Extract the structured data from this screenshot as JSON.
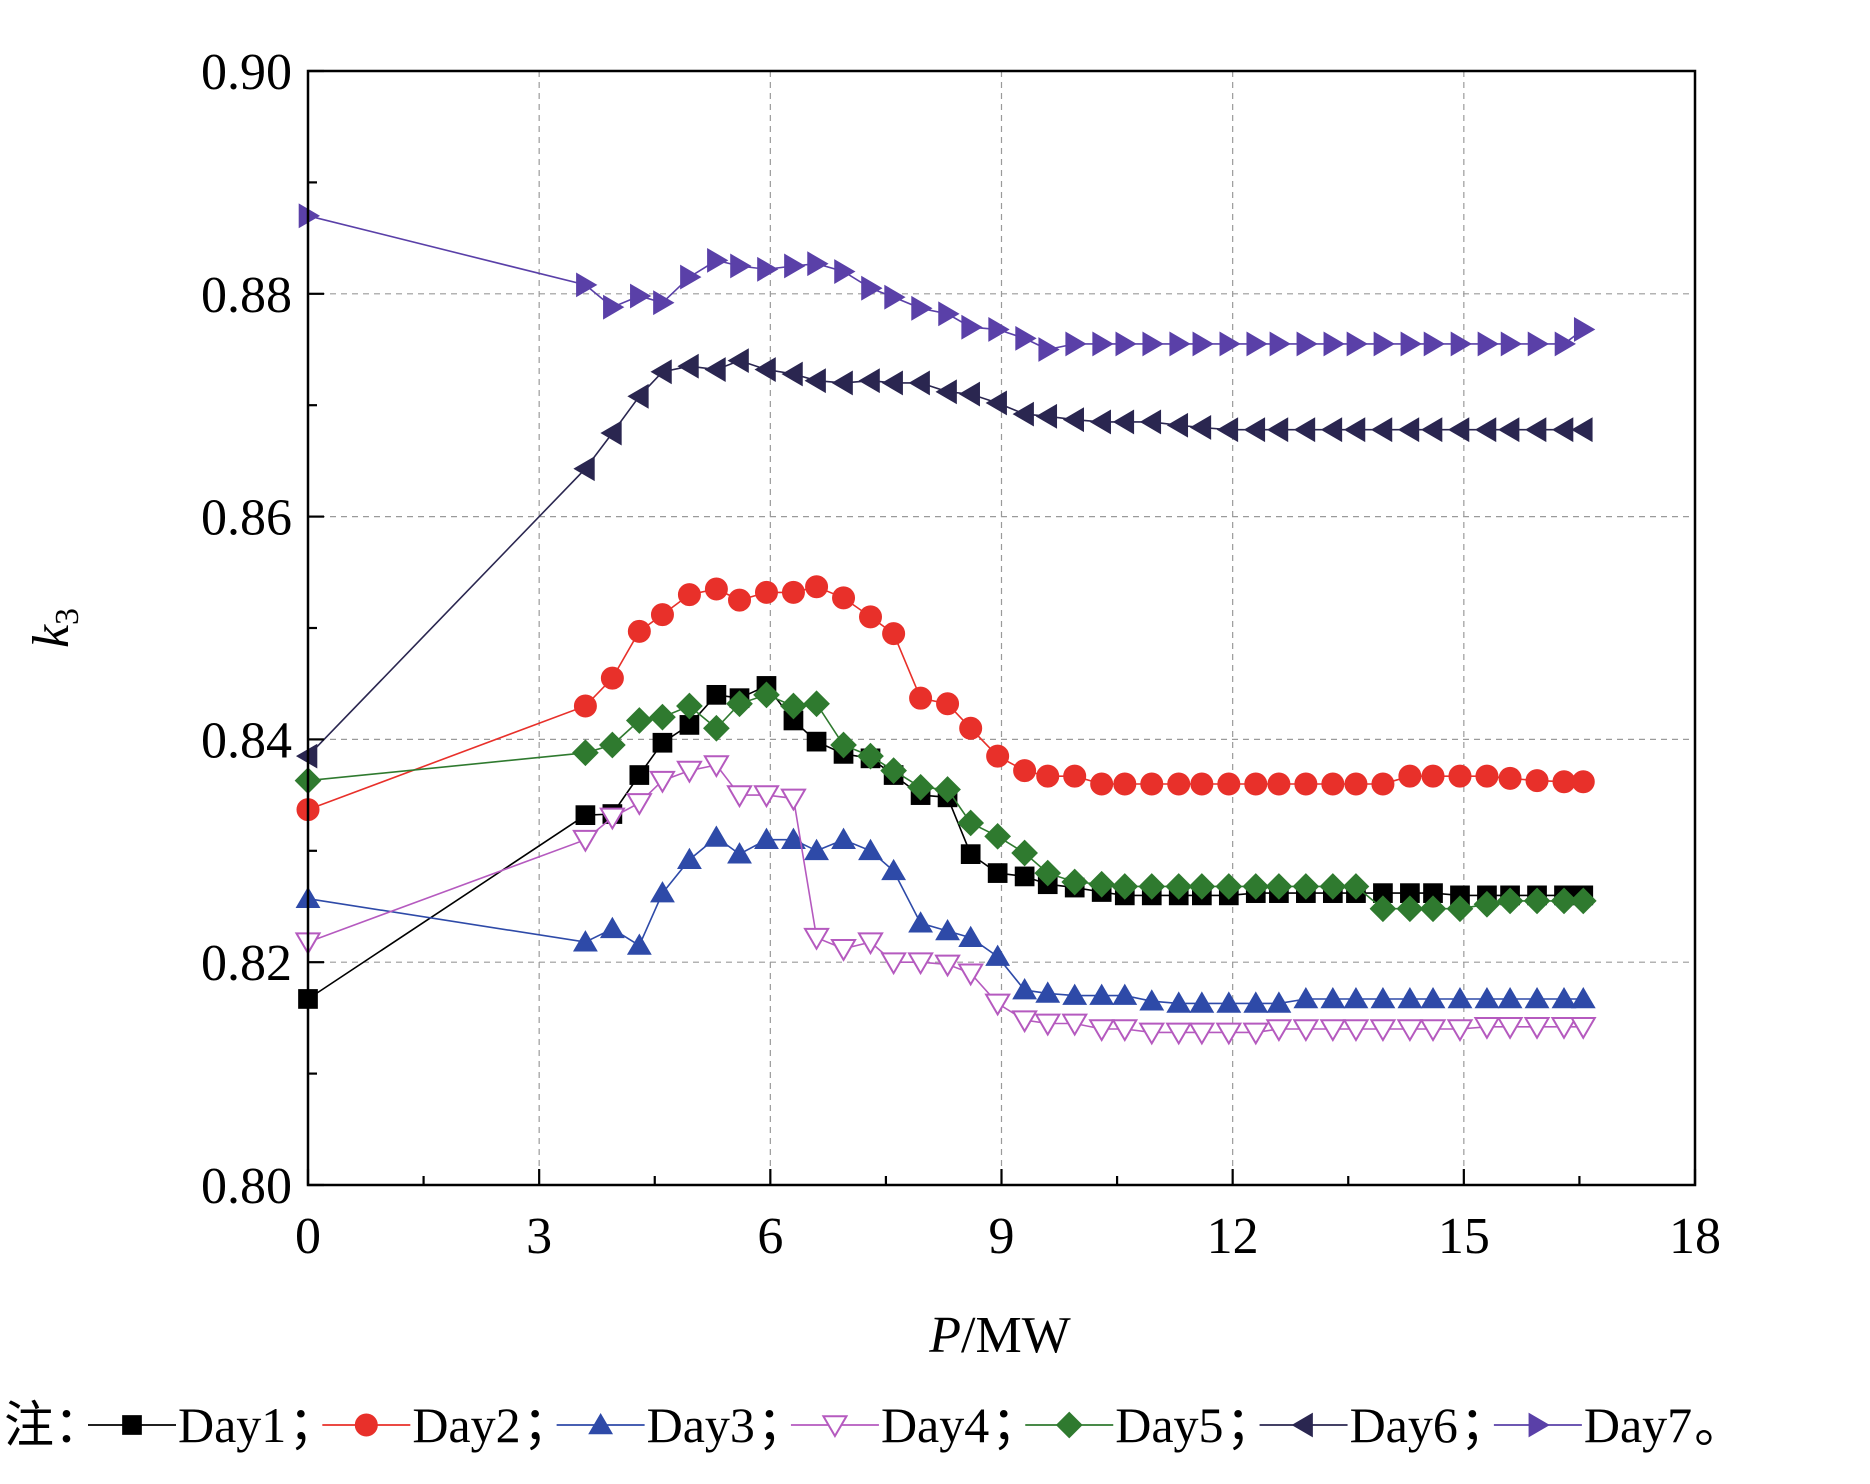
{
  "chart_data": {
    "type": "line",
    "xlabel_italic": "P",
    "xlabel_rest": "/MW",
    "ylabel_main": "k",
    "ylabel_sub": "3",
    "xlim": [
      0,
      18
    ],
    "ylim": [
      0.8,
      0.9
    ],
    "xticks": [
      0,
      3,
      6,
      9,
      12,
      15,
      18
    ],
    "xtick_labels": [
      "0",
      "3",
      "6",
      "9",
      "12",
      "15",
      "18"
    ],
    "yticks": [
      0.8,
      0.82,
      0.84,
      0.86,
      0.88,
      0.9
    ],
    "ytick_labels": [
      "0.80",
      "0.82",
      "0.84",
      "0.86",
      "0.88",
      "0.90"
    ],
    "grid": true,
    "legend_position": "bottom",
    "legend_prefix": "注：",
    "legend_separator": "；",
    "legend_terminator": "。",
    "series": [
      {
        "name": "Day1",
        "color": "#000000",
        "marker": "square",
        "filled": true,
        "points": [
          [
            0,
            0.8167
          ],
          [
            3.6,
            0.8332
          ],
          [
            3.95,
            0.8333
          ],
          [
            4.3,
            0.8368
          ],
          [
            4.6,
            0.8397
          ],
          [
            4.95,
            0.8413
          ],
          [
            5.3,
            0.844
          ],
          [
            5.6,
            0.8437
          ],
          [
            5.95,
            0.8448
          ],
          [
            6.3,
            0.8417
          ],
          [
            6.6,
            0.8398
          ],
          [
            6.95,
            0.8387
          ],
          [
            7.3,
            0.8383
          ],
          [
            7.6,
            0.8368
          ],
          [
            7.95,
            0.835
          ],
          [
            8.3,
            0.8348
          ],
          [
            8.6,
            0.8297
          ],
          [
            8.95,
            0.828
          ],
          [
            9.3,
            0.8277
          ],
          [
            9.6,
            0.827
          ],
          [
            9.95,
            0.8267
          ],
          [
            10.3,
            0.8263
          ],
          [
            10.6,
            0.826
          ],
          [
            10.95,
            0.826
          ],
          [
            11.3,
            0.826
          ],
          [
            11.6,
            0.826
          ],
          [
            11.95,
            0.826
          ],
          [
            12.3,
            0.8262
          ],
          [
            12.6,
            0.8262
          ],
          [
            12.95,
            0.8262
          ],
          [
            13.3,
            0.8262
          ],
          [
            13.6,
            0.8262
          ],
          [
            13.95,
            0.8262
          ],
          [
            14.3,
            0.8262
          ],
          [
            14.6,
            0.8262
          ],
          [
            14.95,
            0.826
          ],
          [
            15.3,
            0.826
          ],
          [
            15.6,
            0.826
          ],
          [
            15.95,
            0.826
          ],
          [
            16.3,
            0.826
          ],
          [
            16.55,
            0.826
          ]
        ]
      },
      {
        "name": "Day2",
        "color": "#e8302a",
        "marker": "circle",
        "filled": true,
        "points": [
          [
            0,
            0.8337
          ],
          [
            3.6,
            0.843
          ],
          [
            3.95,
            0.8455
          ],
          [
            4.3,
            0.8497
          ],
          [
            4.6,
            0.8512
          ],
          [
            4.95,
            0.853
          ],
          [
            5.3,
            0.8535
          ],
          [
            5.6,
            0.8525
          ],
          [
            5.95,
            0.8532
          ],
          [
            6.3,
            0.8532
          ],
          [
            6.6,
            0.8537
          ],
          [
            6.95,
            0.8527
          ],
          [
            7.3,
            0.851
          ],
          [
            7.6,
            0.8495
          ],
          [
            7.95,
            0.8437
          ],
          [
            8.3,
            0.8432
          ],
          [
            8.6,
            0.841
          ],
          [
            8.95,
            0.8385
          ],
          [
            9.3,
            0.8372
          ],
          [
            9.6,
            0.8367
          ],
          [
            9.95,
            0.8367
          ],
          [
            10.3,
            0.836
          ],
          [
            10.6,
            0.836
          ],
          [
            10.95,
            0.836
          ],
          [
            11.3,
            0.836
          ],
          [
            11.6,
            0.836
          ],
          [
            11.95,
            0.836
          ],
          [
            12.3,
            0.836
          ],
          [
            12.6,
            0.836
          ],
          [
            12.95,
            0.836
          ],
          [
            13.3,
            0.836
          ],
          [
            13.6,
            0.836
          ],
          [
            13.95,
            0.836
          ],
          [
            14.3,
            0.8367
          ],
          [
            14.6,
            0.8367
          ],
          [
            14.95,
            0.8367
          ],
          [
            15.3,
            0.8367
          ],
          [
            15.6,
            0.8365
          ],
          [
            15.95,
            0.8363
          ],
          [
            16.3,
            0.8362
          ],
          [
            16.55,
            0.8362
          ]
        ]
      },
      {
        "name": "Day3",
        "color": "#2e4aa8",
        "marker": "triangle-up",
        "filled": true,
        "points": [
          [
            0,
            0.8257
          ],
          [
            3.6,
            0.8218
          ],
          [
            3.95,
            0.823
          ],
          [
            4.3,
            0.8215
          ],
          [
            4.6,
            0.8262
          ],
          [
            4.95,
            0.8292
          ],
          [
            5.3,
            0.8312
          ],
          [
            5.6,
            0.8297
          ],
          [
            5.95,
            0.831
          ],
          [
            6.3,
            0.831
          ],
          [
            6.6,
            0.83
          ],
          [
            6.95,
            0.831
          ],
          [
            7.3,
            0.83
          ],
          [
            7.6,
            0.8282
          ],
          [
            7.95,
            0.8235
          ],
          [
            8.3,
            0.8228
          ],
          [
            8.6,
            0.8222
          ],
          [
            8.95,
            0.8205
          ],
          [
            9.3,
            0.8175
          ],
          [
            9.6,
            0.8172
          ],
          [
            9.95,
            0.817
          ],
          [
            10.3,
            0.817
          ],
          [
            10.6,
            0.817
          ],
          [
            10.95,
            0.8165
          ],
          [
            11.3,
            0.8163
          ],
          [
            11.6,
            0.8163
          ],
          [
            11.95,
            0.8163
          ],
          [
            12.3,
            0.8163
          ],
          [
            12.6,
            0.8163
          ],
          [
            12.95,
            0.8167
          ],
          [
            13.3,
            0.8167
          ],
          [
            13.6,
            0.8167
          ],
          [
            13.95,
            0.8167
          ],
          [
            14.3,
            0.8167
          ],
          [
            14.6,
            0.8167
          ],
          [
            14.95,
            0.8167
          ],
          [
            15.3,
            0.8167
          ],
          [
            15.6,
            0.8167
          ],
          [
            15.95,
            0.8167
          ],
          [
            16.3,
            0.8167
          ],
          [
            16.55,
            0.8167
          ]
        ]
      },
      {
        "name": "Day4",
        "color": "#b55abf",
        "marker": "triangle-down",
        "filled": false,
        "points": [
          [
            0,
            0.8218
          ],
          [
            3.6,
            0.831
          ],
          [
            3.95,
            0.833
          ],
          [
            4.3,
            0.8343
          ],
          [
            4.6,
            0.8363
          ],
          [
            4.95,
            0.8372
          ],
          [
            5.3,
            0.8377
          ],
          [
            5.6,
            0.835
          ],
          [
            5.95,
            0.835
          ],
          [
            6.3,
            0.8347
          ],
          [
            6.6,
            0.8222
          ],
          [
            6.95,
            0.8212
          ],
          [
            7.3,
            0.8218
          ],
          [
            7.6,
            0.82
          ],
          [
            7.95,
            0.82
          ],
          [
            8.3,
            0.8198
          ],
          [
            8.6,
            0.819
          ],
          [
            8.95,
            0.8163
          ],
          [
            9.3,
            0.8148
          ],
          [
            9.6,
            0.8145
          ],
          [
            9.95,
            0.8145
          ],
          [
            10.3,
            0.814
          ],
          [
            10.6,
            0.814
          ],
          [
            10.95,
            0.8137
          ],
          [
            11.3,
            0.8137
          ],
          [
            11.6,
            0.8137
          ],
          [
            11.95,
            0.8137
          ],
          [
            12.3,
            0.8137
          ],
          [
            12.6,
            0.814
          ],
          [
            12.95,
            0.814
          ],
          [
            13.3,
            0.814
          ],
          [
            13.6,
            0.814
          ],
          [
            13.95,
            0.814
          ],
          [
            14.3,
            0.814
          ],
          [
            14.6,
            0.814
          ],
          [
            14.95,
            0.814
          ],
          [
            15.3,
            0.8142
          ],
          [
            15.6,
            0.8142
          ],
          [
            15.95,
            0.8142
          ],
          [
            16.3,
            0.8142
          ],
          [
            16.55,
            0.8142
          ]
        ]
      },
      {
        "name": "Day5",
        "color": "#2f7a2f",
        "marker": "diamond",
        "filled": true,
        "points": [
          [
            0,
            0.8363
          ],
          [
            3.6,
            0.8388
          ],
          [
            3.95,
            0.8395
          ],
          [
            4.3,
            0.8417
          ],
          [
            4.6,
            0.842
          ],
          [
            4.95,
            0.843
          ],
          [
            5.3,
            0.841
          ],
          [
            5.6,
            0.8432
          ],
          [
            5.95,
            0.844
          ],
          [
            6.3,
            0.843
          ],
          [
            6.6,
            0.8432
          ],
          [
            6.95,
            0.8395
          ],
          [
            7.3,
            0.8385
          ],
          [
            7.6,
            0.8372
          ],
          [
            7.95,
            0.8357
          ],
          [
            8.3,
            0.8355
          ],
          [
            8.6,
            0.8325
          ],
          [
            8.95,
            0.8313
          ],
          [
            9.3,
            0.8298
          ],
          [
            9.6,
            0.828
          ],
          [
            9.95,
            0.8272
          ],
          [
            10.3,
            0.827
          ],
          [
            10.6,
            0.8268
          ],
          [
            10.95,
            0.8268
          ],
          [
            11.3,
            0.8268
          ],
          [
            11.6,
            0.8268
          ],
          [
            11.95,
            0.8268
          ],
          [
            12.3,
            0.8268
          ],
          [
            12.6,
            0.8268
          ],
          [
            12.95,
            0.8268
          ],
          [
            13.3,
            0.8268
          ],
          [
            13.6,
            0.8268
          ],
          [
            13.95,
            0.8248
          ],
          [
            14.3,
            0.8248
          ],
          [
            14.6,
            0.8248
          ],
          [
            14.95,
            0.8248
          ],
          [
            15.3,
            0.8252
          ],
          [
            15.6,
            0.8255
          ],
          [
            15.95,
            0.8255
          ],
          [
            16.3,
            0.8255
          ],
          [
            16.55,
            0.8255
          ]
        ]
      },
      {
        "name": "Day6",
        "color": "#2a2650",
        "marker": "triangle-left",
        "filled": true,
        "points": [
          [
            0,
            0.8385
          ],
          [
            3.6,
            0.8643
          ],
          [
            3.95,
            0.8675
          ],
          [
            4.3,
            0.8708
          ],
          [
            4.6,
            0.873
          ],
          [
            4.95,
            0.8735
          ],
          [
            5.3,
            0.8732
          ],
          [
            5.6,
            0.874
          ],
          [
            5.95,
            0.8732
          ],
          [
            6.3,
            0.8728
          ],
          [
            6.6,
            0.8722
          ],
          [
            6.95,
            0.872
          ],
          [
            7.3,
            0.8722
          ],
          [
            7.6,
            0.872
          ],
          [
            7.95,
            0.872
          ],
          [
            8.3,
            0.8712
          ],
          [
            8.6,
            0.871
          ],
          [
            8.95,
            0.8702
          ],
          [
            9.3,
            0.8692
          ],
          [
            9.6,
            0.869
          ],
          [
            9.95,
            0.8687
          ],
          [
            10.3,
            0.8685
          ],
          [
            10.6,
            0.8685
          ],
          [
            10.95,
            0.8685
          ],
          [
            11.3,
            0.8682
          ],
          [
            11.6,
            0.868
          ],
          [
            11.95,
            0.8678
          ],
          [
            12.3,
            0.8678
          ],
          [
            12.6,
            0.8678
          ],
          [
            12.95,
            0.8678
          ],
          [
            13.3,
            0.8678
          ],
          [
            13.6,
            0.8678
          ],
          [
            13.95,
            0.8678
          ],
          [
            14.3,
            0.8678
          ],
          [
            14.6,
            0.8678
          ],
          [
            14.95,
            0.8678
          ],
          [
            15.3,
            0.8678
          ],
          [
            15.6,
            0.8678
          ],
          [
            15.95,
            0.8678
          ],
          [
            16.3,
            0.8678
          ],
          [
            16.55,
            0.8678
          ]
        ]
      },
      {
        "name": "Day7",
        "color": "#5a40a8",
        "marker": "triangle-right",
        "filled": true,
        "points": [
          [
            0,
            0.887
          ],
          [
            3.6,
            0.8808
          ],
          [
            3.95,
            0.8788
          ],
          [
            4.3,
            0.8798
          ],
          [
            4.6,
            0.8792
          ],
          [
            4.95,
            0.8815
          ],
          [
            5.3,
            0.883
          ],
          [
            5.6,
            0.8825
          ],
          [
            5.95,
            0.8822
          ],
          [
            6.3,
            0.8825
          ],
          [
            6.6,
            0.8827
          ],
          [
            6.95,
            0.882
          ],
          [
            7.3,
            0.8805
          ],
          [
            7.6,
            0.8797
          ],
          [
            7.95,
            0.8787
          ],
          [
            8.3,
            0.8782
          ],
          [
            8.6,
            0.877
          ],
          [
            8.95,
            0.8768
          ],
          [
            9.3,
            0.876
          ],
          [
            9.6,
            0.875
          ],
          [
            9.95,
            0.8755
          ],
          [
            10.3,
            0.8755
          ],
          [
            10.6,
            0.8755
          ],
          [
            10.95,
            0.8755
          ],
          [
            11.3,
            0.8755
          ],
          [
            11.6,
            0.8755
          ],
          [
            11.95,
            0.8755
          ],
          [
            12.3,
            0.8755
          ],
          [
            12.6,
            0.8755
          ],
          [
            12.95,
            0.8755
          ],
          [
            13.3,
            0.8755
          ],
          [
            13.6,
            0.8755
          ],
          [
            13.95,
            0.8755
          ],
          [
            14.3,
            0.8755
          ],
          [
            14.6,
            0.8755
          ],
          [
            14.95,
            0.8755
          ],
          [
            15.3,
            0.8755
          ],
          [
            15.6,
            0.8755
          ],
          [
            15.95,
            0.8755
          ],
          [
            16.3,
            0.8755
          ],
          [
            16.55,
            0.8768
          ]
        ]
      }
    ]
  }
}
